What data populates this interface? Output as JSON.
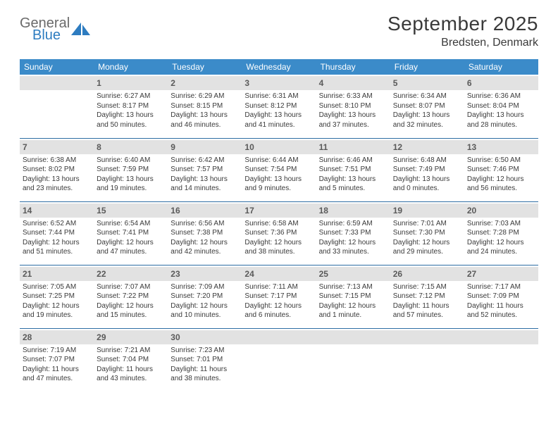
{
  "logo": {
    "text_top": "General",
    "text_bottom": "Blue",
    "icon_color": "#2d7cc0"
  },
  "title": "September 2025",
  "location": "Bredsten, Denmark",
  "colors": {
    "header_bg": "#3b8bc9",
    "row_divider": "#2d6da3",
    "daynum_bg": "#e2e2e2",
    "text": "#3a3a3a"
  },
  "weekdays": [
    "Sunday",
    "Monday",
    "Tuesday",
    "Wednesday",
    "Thursday",
    "Friday",
    "Saturday"
  ],
  "weeks": [
    [
      {
        "day": "",
        "sunrise": "",
        "sunset": "",
        "daylight": ""
      },
      {
        "day": "1",
        "sunrise": "Sunrise: 6:27 AM",
        "sunset": "Sunset: 8:17 PM",
        "daylight": "Daylight: 13 hours and 50 minutes."
      },
      {
        "day": "2",
        "sunrise": "Sunrise: 6:29 AM",
        "sunset": "Sunset: 8:15 PM",
        "daylight": "Daylight: 13 hours and 46 minutes."
      },
      {
        "day": "3",
        "sunrise": "Sunrise: 6:31 AM",
        "sunset": "Sunset: 8:12 PM",
        "daylight": "Daylight: 13 hours and 41 minutes."
      },
      {
        "day": "4",
        "sunrise": "Sunrise: 6:33 AM",
        "sunset": "Sunset: 8:10 PM",
        "daylight": "Daylight: 13 hours and 37 minutes."
      },
      {
        "day": "5",
        "sunrise": "Sunrise: 6:34 AM",
        "sunset": "Sunset: 8:07 PM",
        "daylight": "Daylight: 13 hours and 32 minutes."
      },
      {
        "day": "6",
        "sunrise": "Sunrise: 6:36 AM",
        "sunset": "Sunset: 8:04 PM",
        "daylight": "Daylight: 13 hours and 28 minutes."
      }
    ],
    [
      {
        "day": "7",
        "sunrise": "Sunrise: 6:38 AM",
        "sunset": "Sunset: 8:02 PM",
        "daylight": "Daylight: 13 hours and 23 minutes."
      },
      {
        "day": "8",
        "sunrise": "Sunrise: 6:40 AM",
        "sunset": "Sunset: 7:59 PM",
        "daylight": "Daylight: 13 hours and 19 minutes."
      },
      {
        "day": "9",
        "sunrise": "Sunrise: 6:42 AM",
        "sunset": "Sunset: 7:57 PM",
        "daylight": "Daylight: 13 hours and 14 minutes."
      },
      {
        "day": "10",
        "sunrise": "Sunrise: 6:44 AM",
        "sunset": "Sunset: 7:54 PM",
        "daylight": "Daylight: 13 hours and 9 minutes."
      },
      {
        "day": "11",
        "sunrise": "Sunrise: 6:46 AM",
        "sunset": "Sunset: 7:51 PM",
        "daylight": "Daylight: 13 hours and 5 minutes."
      },
      {
        "day": "12",
        "sunrise": "Sunrise: 6:48 AM",
        "sunset": "Sunset: 7:49 PM",
        "daylight": "Daylight: 13 hours and 0 minutes."
      },
      {
        "day": "13",
        "sunrise": "Sunrise: 6:50 AM",
        "sunset": "Sunset: 7:46 PM",
        "daylight": "Daylight: 12 hours and 56 minutes."
      }
    ],
    [
      {
        "day": "14",
        "sunrise": "Sunrise: 6:52 AM",
        "sunset": "Sunset: 7:44 PM",
        "daylight": "Daylight: 12 hours and 51 minutes."
      },
      {
        "day": "15",
        "sunrise": "Sunrise: 6:54 AM",
        "sunset": "Sunset: 7:41 PM",
        "daylight": "Daylight: 12 hours and 47 minutes."
      },
      {
        "day": "16",
        "sunrise": "Sunrise: 6:56 AM",
        "sunset": "Sunset: 7:38 PM",
        "daylight": "Daylight: 12 hours and 42 minutes."
      },
      {
        "day": "17",
        "sunrise": "Sunrise: 6:58 AM",
        "sunset": "Sunset: 7:36 PM",
        "daylight": "Daylight: 12 hours and 38 minutes."
      },
      {
        "day": "18",
        "sunrise": "Sunrise: 6:59 AM",
        "sunset": "Sunset: 7:33 PM",
        "daylight": "Daylight: 12 hours and 33 minutes."
      },
      {
        "day": "19",
        "sunrise": "Sunrise: 7:01 AM",
        "sunset": "Sunset: 7:30 PM",
        "daylight": "Daylight: 12 hours and 29 minutes."
      },
      {
        "day": "20",
        "sunrise": "Sunrise: 7:03 AM",
        "sunset": "Sunset: 7:28 PM",
        "daylight": "Daylight: 12 hours and 24 minutes."
      }
    ],
    [
      {
        "day": "21",
        "sunrise": "Sunrise: 7:05 AM",
        "sunset": "Sunset: 7:25 PM",
        "daylight": "Daylight: 12 hours and 19 minutes."
      },
      {
        "day": "22",
        "sunrise": "Sunrise: 7:07 AM",
        "sunset": "Sunset: 7:22 PM",
        "daylight": "Daylight: 12 hours and 15 minutes."
      },
      {
        "day": "23",
        "sunrise": "Sunrise: 7:09 AM",
        "sunset": "Sunset: 7:20 PM",
        "daylight": "Daylight: 12 hours and 10 minutes."
      },
      {
        "day": "24",
        "sunrise": "Sunrise: 7:11 AM",
        "sunset": "Sunset: 7:17 PM",
        "daylight": "Daylight: 12 hours and 6 minutes."
      },
      {
        "day": "25",
        "sunrise": "Sunrise: 7:13 AM",
        "sunset": "Sunset: 7:15 PM",
        "daylight": "Daylight: 12 hours and 1 minute."
      },
      {
        "day": "26",
        "sunrise": "Sunrise: 7:15 AM",
        "sunset": "Sunset: 7:12 PM",
        "daylight": "Daylight: 11 hours and 57 minutes."
      },
      {
        "day": "27",
        "sunrise": "Sunrise: 7:17 AM",
        "sunset": "Sunset: 7:09 PM",
        "daylight": "Daylight: 11 hours and 52 minutes."
      }
    ],
    [
      {
        "day": "28",
        "sunrise": "Sunrise: 7:19 AM",
        "sunset": "Sunset: 7:07 PM",
        "daylight": "Daylight: 11 hours and 47 minutes."
      },
      {
        "day": "29",
        "sunrise": "Sunrise: 7:21 AM",
        "sunset": "Sunset: 7:04 PM",
        "daylight": "Daylight: 11 hours and 43 minutes."
      },
      {
        "day": "30",
        "sunrise": "Sunrise: 7:23 AM",
        "sunset": "Sunset: 7:01 PM",
        "daylight": "Daylight: 11 hours and 38 minutes."
      },
      {
        "day": "",
        "sunrise": "",
        "sunset": "",
        "daylight": ""
      },
      {
        "day": "",
        "sunrise": "",
        "sunset": "",
        "daylight": ""
      },
      {
        "day": "",
        "sunrise": "",
        "sunset": "",
        "daylight": ""
      },
      {
        "day": "",
        "sunrise": "",
        "sunset": "",
        "daylight": ""
      }
    ]
  ]
}
